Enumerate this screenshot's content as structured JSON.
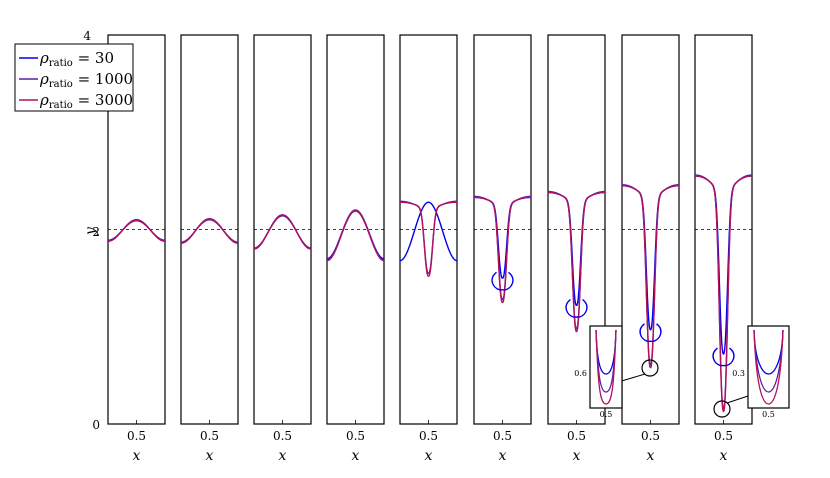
{
  "chart_data": {
    "type": "line",
    "title": "",
    "xlabel": "x",
    "ylabel": "y",
    "ylim": [
      0,
      4
    ],
    "ytick_labels": [
      "0",
      "2",
      "4"
    ],
    "xtick_label": "0.5",
    "reference_line_y": 2,
    "colors": {
      "rho30": "#0000ee",
      "rho1000": "#5a1ea8",
      "rho3000": "#b0125e"
    },
    "legend": {
      "placement": "top-left",
      "entries": [
        {
          "symbol": "ρ",
          "subscript": "ratio",
          "value": "= 30"
        },
        {
          "symbol": "ρ",
          "subscript": "ratio",
          "value": "= 1000"
        },
        {
          "symbol": "ρ",
          "subscript": "ratio",
          "value": "= 3000"
        }
      ]
    },
    "panels": [
      {
        "edge_y": 2.1,
        "tip_y": 1.88,
        "bubble_tip_y": 1.88
      },
      {
        "edge_y": 2.11,
        "tip_y": 1.86,
        "bubble_tip_y": 1.86
      },
      {
        "edge_y": 2.15,
        "tip_y": 1.8,
        "bubble_tip_y": 1.8
      },
      {
        "edge_y": 2.2,
        "tip_y": 1.68,
        "bubble_tip_y": 1.7
      },
      {
        "edge_y": 2.28,
        "tip_y": 1.52,
        "bubble_tip_y": 1.56
      },
      {
        "edge_y": 2.33,
        "tip_y": 1.25,
        "bubble_tip_y": 1.38
      },
      {
        "edge_y": 2.38,
        "tip_y": 0.95,
        "bubble_tip_y": 1.1
      },
      {
        "edge_y": 2.45,
        "tip_y": 0.58,
        "bubble_tip_y": 0.85
      },
      {
        "edge_y": 2.55,
        "tip_y": 0.13,
        "bubble_tip_y": 0.6
      }
    ],
    "insets": [
      {
        "panel": 7,
        "ytick": "0.6",
        "xtick": "0.5"
      },
      {
        "panel": 9,
        "ytick": "0.3",
        "xtick": "0.5"
      }
    ]
  }
}
